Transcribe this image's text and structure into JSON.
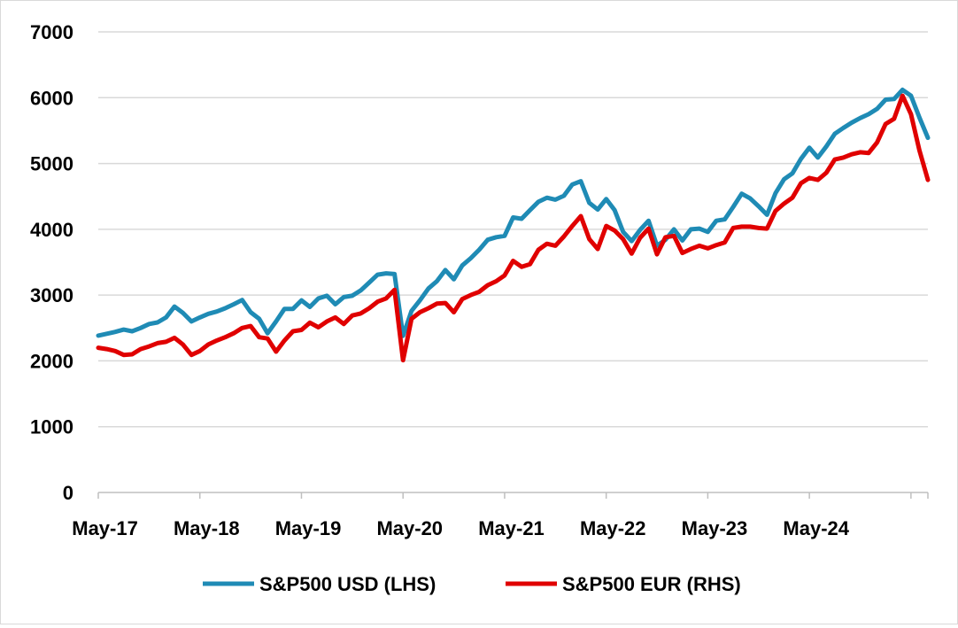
{
  "chart_data": {
    "type": "line",
    "title": "",
    "xlabel": "",
    "ylabel": "",
    "ylim": [
      0,
      7000
    ],
    "y_ticks": [
      "0",
      "1000",
      "2000",
      "3000",
      "4000",
      "5000",
      "6000",
      "7000"
    ],
    "x_tick_labels": [
      "May-17",
      "May-18",
      "May-19",
      "May-20",
      "May-21",
      "May-22",
      "May-23",
      "May-24"
    ],
    "x_start": "Apr-17",
    "x_end": "Apr-25",
    "grid": "horizontal",
    "legend_position": "bottom",
    "series": [
      {
        "name": "S&P500 USD (LHS)",
        "color": "#1f8bb5",
        "values": [
          2384,
          2412,
          2440,
          2475,
          2450,
          2500,
          2560,
          2585,
          2660,
          2825,
          2730,
          2600,
          2660,
          2715,
          2750,
          2800,
          2860,
          2925,
          2740,
          2640,
          2420,
          2600,
          2790,
          2790,
          2920,
          2820,
          2950,
          2990,
          2860,
          2970,
          2990,
          3070,
          3190,
          3310,
          3330,
          3320,
          2380,
          2760,
          2920,
          3100,
          3210,
          3380,
          3240,
          3450,
          3560,
          3690,
          3840,
          3880,
          3900,
          4180,
          4160,
          4290,
          4420,
          4480,
          4450,
          4510,
          4680,
          4730,
          4400,
          4300,
          4460,
          4290,
          3960,
          3820,
          3990,
          4130,
          3750,
          3840,
          4000,
          3830,
          4000,
          4010,
          3960,
          4130,
          4150,
          4340,
          4540,
          4470,
          4350,
          4220,
          4550,
          4760,
          4850,
          5070,
          5240,
          5090,
          5260,
          5450,
          5540,
          5620,
          5690,
          5750,
          5830,
          5970,
          5980,
          6120,
          6030,
          5700,
          5390
        ]
      },
      {
        "name": "S&P500 EUR (RHS)",
        "color": "#e00000",
        "values": [
          2200,
          2180,
          2150,
          2090,
          2100,
          2180,
          2220,
          2270,
          2290,
          2350,
          2250,
          2090,
          2150,
          2250,
          2310,
          2360,
          2420,
          2500,
          2530,
          2360,
          2340,
          2140,
          2310,
          2450,
          2470,
          2580,
          2510,
          2600,
          2660,
          2560,
          2690,
          2720,
          2800,
          2900,
          2950,
          3080,
          2010,
          2640,
          2740,
          2800,
          2870,
          2880,
          2740,
          2940,
          3000,
          3050,
          3150,
          3210,
          3300,
          3520,
          3430,
          3470,
          3690,
          3780,
          3750,
          3890,
          4050,
          4200,
          3850,
          3700,
          4050,
          3980,
          3850,
          3630,
          3870,
          4010,
          3620,
          3880,
          3900,
          3640,
          3700,
          3750,
          3710,
          3760,
          3800,
          4020,
          4040,
          4040,
          4020,
          4010,
          4280,
          4390,
          4480,
          4700,
          4780,
          4750,
          4860,
          5060,
          5090,
          5140,
          5170,
          5160,
          5320,
          5600,
          5680,
          6030,
          5750,
          5200,
          4750
        ]
      }
    ]
  }
}
